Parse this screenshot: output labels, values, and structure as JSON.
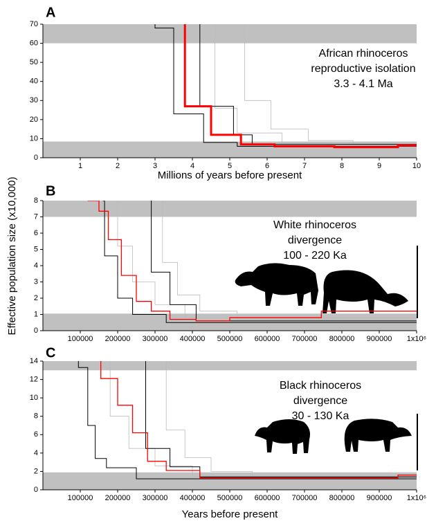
{
  "ylabel": "Effective population size (x10,000)",
  "chart_data": [
    {
      "type": "line",
      "panel": "A",
      "xlabel": "Millions of years before present",
      "annotation": [
        "African rhinoceros",
        "reproductive isolation",
        "3.3 - 4.1 Ma"
      ],
      "xlim": [
        0,
        10
      ],
      "xticks": [
        1,
        2,
        3,
        4,
        5,
        6,
        7,
        8,
        9,
        10
      ],
      "ylim": [
        0,
        70
      ],
      "yticks": [
        0,
        10,
        20,
        30,
        40,
        50,
        60,
        70
      ],
      "bands": [
        [
          60,
          70
        ],
        [
          0,
          8.5
        ]
      ],
      "band_color": "#c0c0c0",
      "series": [
        {
          "color": "#bbbbbb",
          "width": 0.8,
          "x": [
            4.6,
            4.6,
            5.2,
            5.2,
            6.4,
            6.4,
            7.6,
            7.6,
            10
          ],
          "values": [
            70,
            26,
            26,
            13,
            13,
            8,
            8,
            6.5,
            6.5
          ]
        },
        {
          "color": "#bbbbbb",
          "width": 0.8,
          "x": [
            5.4,
            5.4,
            6.1,
            6.1,
            7.1,
            7.1,
            8.3,
            8.3,
            10
          ],
          "values": [
            70,
            30,
            30,
            15,
            15,
            9,
            9,
            7,
            7
          ]
        },
        {
          "color": "#000000",
          "width": 1,
          "x": [
            3.0,
            3.0,
            3.5,
            3.5,
            4.3,
            4.3,
            5.2,
            5.2,
            10
          ],
          "values": [
            70,
            68,
            68,
            23,
            23,
            8,
            8,
            6,
            6
          ]
        },
        {
          "color": "#000000",
          "width": 1,
          "x": [
            4.2,
            4.2,
            5.1,
            5.1,
            5.6,
            5.6,
            10
          ],
          "values": [
            70,
            27,
            27,
            12,
            12,
            7,
            7
          ]
        },
        {
          "color": "#ff0000",
          "width": 3,
          "x": [
            3.8,
            3.8,
            4.5,
            4.5,
            5.3,
            5.3,
            6.2,
            6.2,
            7.8,
            7.8,
            9.5,
            9.5,
            10
          ],
          "values": [
            70,
            27,
            27,
            12,
            12,
            7,
            7,
            6,
            6,
            5.5,
            5.5,
            6.5,
            6.5
          ]
        }
      ]
    },
    {
      "type": "line",
      "panel": "B",
      "annotation": [
        "White rhinoceros",
        "divergence",
        "100 - 220 Ka"
      ],
      "xlim": [
        0,
        1000000
      ],
      "xticks": [
        100000,
        200000,
        300000,
        400000,
        500000,
        600000,
        700000,
        800000,
        900000,
        {
          "value": 1000000,
          "label": "1x10⁶"
        }
      ],
      "ylim": [
        0,
        8
      ],
      "yticks": [
        0,
        1,
        2,
        3,
        4,
        5,
        6,
        7,
        8
      ],
      "bands": [
        [
          7,
          8
        ],
        [
          0,
          1.05
        ]
      ],
      "band_color": "#c0c0c0",
      "series": [
        {
          "color": "#bbbbbb",
          "width": 0.8,
          "x": [
            200000,
            200000,
            240000,
            240000,
            300000,
            300000,
            380000,
            380000,
            1000000
          ],
          "values": [
            8,
            5.2,
            5.2,
            3.0,
            3.0,
            1.6,
            1.6,
            0.8,
            0.8
          ]
        },
        {
          "color": "#bbbbbb",
          "width": 0.8,
          "x": [
            320000,
            320000,
            360000,
            360000,
            420000,
            420000,
            520000,
            520000,
            1000000
          ],
          "values": [
            8,
            4.2,
            4.2,
            2.2,
            2.2,
            1.2,
            1.2,
            0.7,
            0.7
          ]
        },
        {
          "color": "#000000",
          "width": 1,
          "x": [
            160000,
            165000,
            165000,
            200000,
            200000,
            240000,
            240000,
            330000,
            330000,
            1000000
          ],
          "values": [
            8,
            8,
            4.6,
            4.6,
            2.0,
            2.0,
            1.0,
            1.0,
            0.5,
            0.5
          ]
        },
        {
          "color": "#000000",
          "width": 1,
          "x": [
            290000,
            290000,
            340000,
            340000,
            410000,
            410000,
            1000000
          ],
          "values": [
            8,
            3.6,
            3.6,
            1.6,
            1.6,
            0.6,
            0.6
          ]
        },
        {
          "color": "#ff0000",
          "width": 1.3,
          "x": [
            120000,
            150000,
            150000,
            175000,
            175000,
            210000,
            210000,
            250000,
            250000,
            290000,
            290000,
            340000,
            340000,
            410000,
            410000,
            500000,
            500000,
            745000,
            745000,
            1000000
          ],
          "values": [
            8,
            8,
            7.35,
            7.35,
            5.6,
            5.6,
            3.4,
            3.4,
            1.8,
            1.8,
            1.2,
            1.2,
            0.7,
            0.7,
            0.6,
            0.6,
            0.8,
            0.8,
            1.2,
            1.2
          ]
        }
      ]
    },
    {
      "type": "line",
      "panel": "C",
      "xlabel": "Years before present",
      "annotation": [
        "Black rhinoceros",
        "divergence",
        "30 - 130 Ka"
      ],
      "xlim": [
        0,
        1000000
      ],
      "xticks": [
        100000,
        200000,
        300000,
        400000,
        500000,
        600000,
        700000,
        800000,
        900000,
        {
          "value": 1000000,
          "label": "1x10⁶"
        }
      ],
      "ylim": [
        0,
        14
      ],
      "yticks": [
        0,
        2,
        4,
        6,
        8,
        10,
        12,
        14
      ],
      "bands": [
        [
          13,
          14
        ],
        [
          0,
          1.9
        ]
      ],
      "band_color": "#c0c0c0",
      "series": [
        {
          "color": "#bbbbbb",
          "width": 0.8,
          "x": [
            180000,
            180000,
            230000,
            230000,
            300000,
            300000,
            400000,
            400000,
            1000000
          ],
          "values": [
            14,
            8,
            8,
            4.5,
            4.5,
            2.6,
            2.6,
            1.5,
            1.5
          ]
        },
        {
          "color": "#bbbbbb",
          "width": 0.8,
          "x": [
            330000,
            330000,
            380000,
            380000,
            450000,
            450000,
            560000,
            560000,
            1000000
          ],
          "values": [
            14,
            6.5,
            6.5,
            3.5,
            3.5,
            2.0,
            2.0,
            1.3,
            1.3
          ]
        },
        {
          "color": "#000000",
          "width": 1,
          "x": [
            95000,
            95000,
            120000,
            120000,
            140000,
            140000,
            170000,
            170000,
            250000,
            250000,
            1000000
          ],
          "values": [
            14,
            13.3,
            13.3,
            7.0,
            7.0,
            3.4,
            3.4,
            2.4,
            2.4,
            1.2,
            1.2
          ]
        },
        {
          "color": "#000000",
          "width": 1,
          "x": [
            275000,
            275000,
            340000,
            340000,
            420000,
            420000,
            1000000
          ],
          "values": [
            14,
            4.5,
            4.5,
            2.5,
            2.5,
            1.4,
            1.4
          ]
        },
        {
          "color": "#ff0000",
          "width": 1.3,
          "x": [
            155000,
            155000,
            200000,
            200000,
            240000,
            240000,
            280000,
            280000,
            330000,
            330000,
            420000,
            420000,
            950000,
            950000,
            1000000
          ],
          "values": [
            14,
            12.1,
            12.1,
            9.2,
            9.2,
            6.2,
            6.2,
            3.1,
            3.1,
            2.1,
            2.1,
            1.3,
            1.3,
            1.6,
            1.6
          ]
        }
      ]
    }
  ]
}
